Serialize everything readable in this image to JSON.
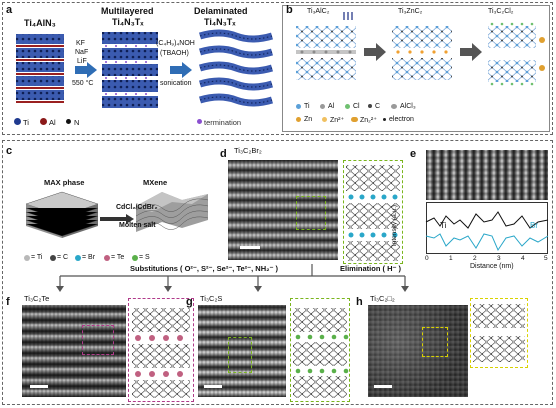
{
  "panel_a": {
    "label": "a",
    "title_left": "Ti₄AlN₃",
    "title_mid": "Multilayered",
    "title_mid_sub": "Ti₄N₃Tₓ",
    "title_right": "Delaminated",
    "title_right_sub": "Ti₄N₃Tₓ",
    "reagents": [
      "KF",
      "NaF",
      "LiF"
    ],
    "temp": "550 °C",
    "reagent2": "(C₄H₉)₄NOH",
    "reagent2b": "(TBAOH)",
    "process2": "sonication",
    "legend": [
      "Ti",
      "Al",
      "N",
      "termination"
    ]
  },
  "panel_b": {
    "label": "b",
    "stage1": "Ti₃AlC₂",
    "stage2": "Ti₃ZnC₂",
    "stage3": "Ti₃C₂Cl₂",
    "legend_row1": [
      "Ti",
      "Al",
      "Cl",
      "C",
      "AlCl₃"
    ],
    "legend_row2": [
      "Zn",
      "Zn²⁺",
      "Zn₂²⁺",
      "electron"
    ]
  },
  "panel_c": {
    "label": "c",
    "max_phase": "MAX phase",
    "mxene": "MXene",
    "salt": "CdCl₂/CdBr₂",
    "salt2": "Molten salt",
    "legend": [
      "= Ti",
      "= C",
      "= Br",
      "= Te",
      "= S"
    ]
  },
  "panel_d": {
    "label": "d",
    "title": "Ti₃C₂Br₂"
  },
  "panel_e": {
    "label": "e",
    "xlabel": "Distance (nm)",
    "ylabel": "Intensity (a.u.)",
    "xticks": [
      "0",
      "1",
      "2",
      "3",
      "4",
      "5"
    ],
    "series": [
      "Ti",
      "Br"
    ]
  },
  "substitutions": "Substitutions ( O²⁻, S²⁻, Se²⁻, Te²⁻, NH₂⁻ )",
  "elimination": "Elimination ( H⁻ )",
  "panel_f": {
    "label": "f",
    "title": "Ti₃C₂Te"
  },
  "panel_g": {
    "label": "g",
    "title": "Ti₃C₂S"
  },
  "panel_h": {
    "label": "h",
    "title": "Ti₃C₂□₂"
  },
  "colors": {
    "ti": "#2b4aa8",
    "al": "#8b1a1a",
    "arrow_blue": "#2f6db5",
    "dashed_green": "#7ab51d",
    "dashed_pink": "#b03a8a",
    "br_teal": "#2aa7c9"
  }
}
